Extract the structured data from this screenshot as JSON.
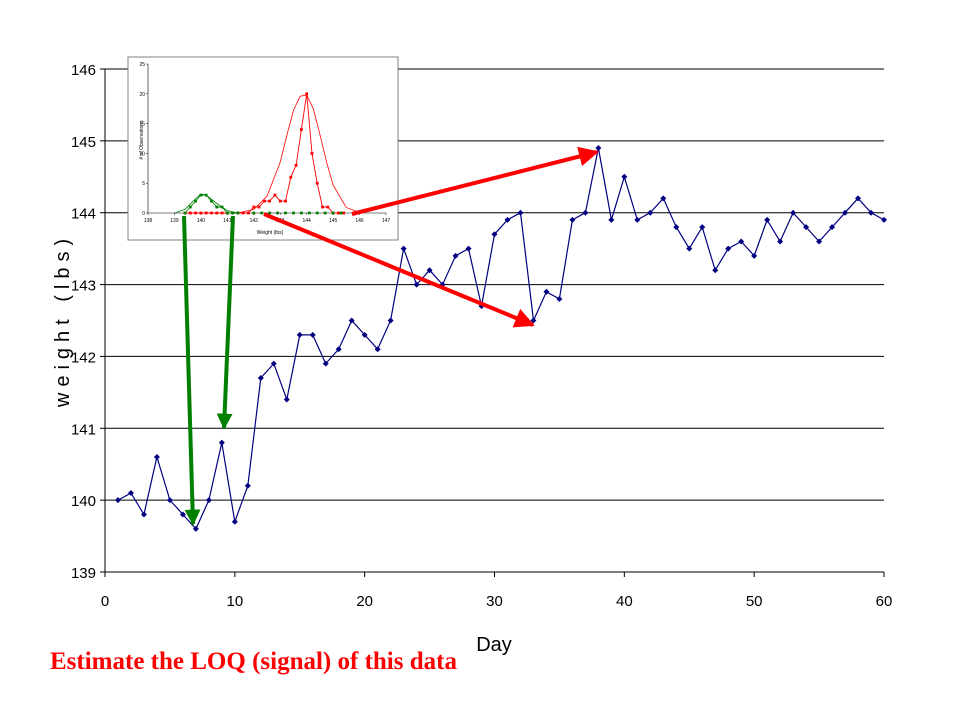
{
  "caption": "Estimate the LOQ (signal) of this data",
  "colors": {
    "main_series": "#000080",
    "gridline": "#000000",
    "arrow_red": "#ff0000",
    "arrow_green": "#008000",
    "inset_red": "#ff0000",
    "inset_green": "#008000",
    "caption": "#ff0000"
  },
  "chart_data": [
    {
      "type": "line",
      "title": "",
      "xlabel": "Day",
      "ylabel": "weight (lbs)",
      "xlim": [
        0,
        60
      ],
      "ylim": [
        139,
        146
      ],
      "x_ticks": [
        0,
        10,
        20,
        30,
        40,
        50,
        60
      ],
      "y_ticks": [
        139,
        140,
        141,
        142,
        143,
        144,
        145,
        146
      ],
      "grid": "horizontal",
      "marker": "diamond",
      "series": [
        {
          "x": [
            1,
            2,
            3,
            4,
            5,
            6,
            7,
            8,
            9,
            10,
            11,
            12,
            13,
            14,
            15,
            16,
            17,
            18,
            19,
            20,
            21,
            22,
            23,
            24,
            25,
            26,
            27,
            28,
            29,
            30,
            31,
            32,
            33,
            34,
            35,
            36,
            37,
            38,
            39,
            40,
            41,
            42,
            43,
            44,
            45,
            46,
            47,
            48,
            49,
            50,
            51,
            52,
            53,
            54,
            55,
            56,
            57,
            58,
            59,
            60
          ],
          "y": [
            140.0,
            140.1,
            139.8,
            140.6,
            140.0,
            139.8,
            139.6,
            140.0,
            140.8,
            139.7,
            140.2,
            141.7,
            141.9,
            141.4,
            142.3,
            142.3,
            141.9,
            142.1,
            142.5,
            142.3,
            142.1,
            142.5,
            143.5,
            143.0,
            143.2,
            143.0,
            143.4,
            143.5,
            142.7,
            143.7,
            143.9,
            144.0,
            142.5,
            142.9,
            142.8,
            143.9,
            144.0,
            144.9,
            143.9,
            144.5,
            143.9,
            144.0,
            144.2,
            143.8,
            143.5,
            143.8,
            143.2,
            143.5,
            143.6,
            143.4,
            143.9,
            143.6,
            144.0,
            143.8,
            143.6,
            143.8,
            144.0,
            144.2,
            144.0,
            143.9
          ]
        }
      ]
    },
    {
      "type": "line",
      "title": "",
      "xlabel": "Weight (lbs)",
      "ylabel": "# of Observations",
      "xlim": [
        138,
        147
      ],
      "ylim": [
        0,
        25
      ],
      "x_ticks": [
        138,
        139,
        140,
        141,
        142,
        143,
        144,
        145,
        146,
        147
      ],
      "y_ticks": [
        0,
        5,
        10,
        15,
        20,
        25
      ],
      "series": [
        {
          "style": "markers-line",
          "color": "#ff0000",
          "x": [
            139.4,
            139.6,
            139.8,
            140.0,
            140.2,
            140.4,
            140.6,
            140.8,
            141.0,
            141.2,
            141.4,
            141.6,
            141.8,
            142.0,
            142.2,
            142.4,
            142.6,
            142.8,
            143.0,
            143.2,
            143.4,
            143.6,
            143.8,
            144.0,
            144.2,
            144.4,
            144.6,
            144.8,
            145.0,
            145.2,
            145.4
          ],
          "y": [
            0,
            0,
            0,
            0,
            0,
            0,
            0,
            0,
            0,
            0,
            0,
            0,
            0,
            1,
            1,
            2,
            2,
            3,
            2,
            2,
            6,
            8,
            14,
            20,
            10,
            5,
            1,
            1,
            0,
            0,
            0
          ]
        },
        {
          "style": "curve",
          "color": "#ff0000",
          "x": [
            141.0,
            141.5,
            142.0,
            142.5,
            143.0,
            143.25,
            143.5,
            143.75,
            144.0,
            144.25,
            144.5,
            144.75,
            145.0,
            145.5,
            146.0
          ],
          "y": [
            0,
            0.1,
            0.6,
            2.8,
            8.5,
            13,
            17.2,
            19.6,
            19.8,
            17.5,
            13.2,
            8.6,
            4.7,
            0.9,
            0.1
          ]
        },
        {
          "style": "markers-line",
          "color": "#008000",
          "x": [
            139.4,
            139.6,
            139.8,
            140.0,
            140.2,
            140.4,
            140.6,
            140.8,
            141.0,
            141.2,
            141.4
          ],
          "y": [
            0,
            1,
            2,
            3,
            3,
            2,
            1,
            1,
            0,
            0,
            0
          ]
        },
        {
          "style": "curve",
          "color": "#008000",
          "x": [
            139.0,
            139.4,
            139.8,
            140.0,
            140.2,
            140.6,
            141.0,
            141.4
          ],
          "y": [
            0,
            0.6,
            2.4,
            3.2,
            3.0,
            1.6,
            0.4,
            0
          ]
        },
        {
          "style": "zero-markers",
          "color": "#008000",
          "x": [
            142.0,
            142.3,
            142.6,
            142.9,
            143.2,
            143.5,
            143.8,
            144.1,
            144.4,
            144.7,
            145.0,
            145.3
          ],
          "y": [
            0,
            0,
            0,
            0,
            0,
            0,
            0,
            0,
            0,
            0,
            0,
            0
          ]
        }
      ]
    }
  ]
}
